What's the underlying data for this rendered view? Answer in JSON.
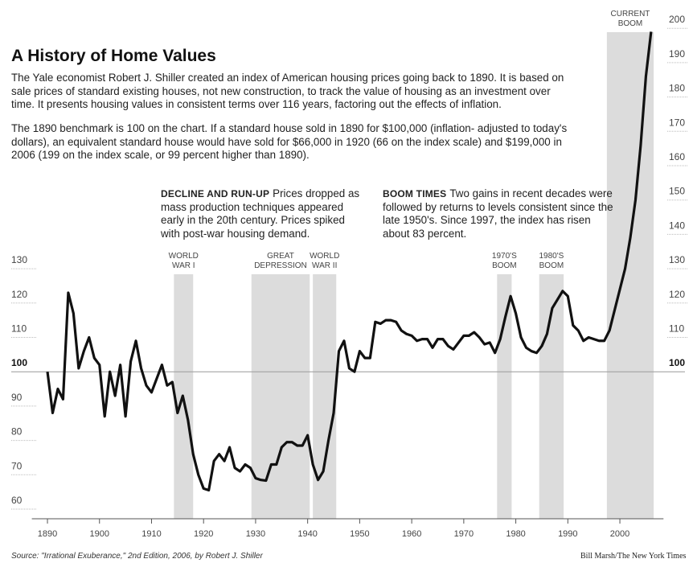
{
  "chart_data": {
    "type": "line",
    "title": "A History of Home Values",
    "subtitle": "The Yale economist Robert J. Shiller created an index of American housing prices going back to 1890. It is based on sale prices of standard existing houses, not new construction, to track the value of housing as an investment over time. It presents housing values in consistent terms over 116 years, factoring out the effects of inflation.",
    "note": "The 1890 benchmark is 100 on the chart. If a standard house sold in 1890 for $100,000 (inflation- adjusted to today's dollars), an equivalent standard house would have sold for $66,000 in 1920 (66 on the index scale) and $199,000 in 2006 (199 on the index scale, or 99 percent higher than 1890).",
    "annotations": [
      {
        "heading": "DECLINE AND RUN-UP",
        "text": "Prices dropped as mass production techniques appeared early in the 20th century. Prices spiked with post-war housing demand."
      },
      {
        "heading": "BOOM TIMES",
        "text": "Two gains in recent decades were followed by returns to levels consistent since the late 1950's. Since 1997, the index has risen about 83 percent."
      }
    ],
    "bands": [
      {
        "label": [
          "WORLD",
          "WAR I"
        ],
        "start": 1914.3,
        "end": 1918
      },
      {
        "label": [
          "GREAT",
          "DEPRESSION"
        ],
        "start": 1929.2,
        "end": 1940.4
      },
      {
        "label": [
          "WORLD",
          "WAR II"
        ],
        "start": 1941,
        "end": 1945.5
      },
      {
        "label": [
          "1970'S",
          "BOOM"
        ],
        "start": 1976.4,
        "end": 1979.2
      },
      {
        "label": [
          "1980'S",
          "BOOM"
        ],
        "start": 1984.5,
        "end": 1989.2
      },
      {
        "label": [
          "CURRENT",
          "BOOM"
        ],
        "start": 1997.5,
        "end": 2006.5
      }
    ],
    "x": [
      1890,
      1891,
      1892,
      1893,
      1894,
      1895,
      1896,
      1897,
      1898,
      1899,
      1900,
      1901,
      1902,
      1903,
      1904,
      1905,
      1906,
      1907,
      1908,
      1909,
      1910,
      1911,
      1912,
      1913,
      1914,
      1915,
      1916,
      1917,
      1918,
      1919,
      1920,
      1921,
      1922,
      1923,
      1924,
      1925,
      1926,
      1927,
      1928,
      1929,
      1930,
      1931,
      1932,
      1933,
      1934,
      1935,
      1936,
      1937,
      1938,
      1939,
      1940,
      1941,
      1942,
      1943,
      1944,
      1945,
      1946,
      1947,
      1948,
      1949,
      1950,
      1951,
      1952,
      1953,
      1954,
      1955,
      1956,
      1957,
      1958,
      1959,
      1960,
      1961,
      1962,
      1963,
      1964,
      1965,
      1966,
      1967,
      1968,
      1969,
      1970,
      1971,
      1972,
      1973,
      1974,
      1975,
      1976,
      1977,
      1978,
      1979,
      1980,
      1981,
      1982,
      1983,
      1984,
      1985,
      1986,
      1987,
      1988,
      1989,
      1990,
      1991,
      1992,
      1993,
      1994,
      1995,
      1996,
      1997,
      1998,
      1999,
      2000,
      2001,
      2002,
      2003,
      2004,
      2005,
      2006
    ],
    "series": [
      {
        "name": "Home value index",
        "color": "#111111",
        "values": [
          100,
          88,
          95,
          92,
          123,
          117,
          101,
          106,
          110,
          104,
          102,
          87,
          100,
          93,
          102,
          87,
          103,
          109,
          101,
          96,
          94,
          98,
          102,
          96,
          97,
          88,
          93,
          86,
          76,
          70,
          66,
          65.5,
          74,
          76,
          74,
          78,
          72,
          71,
          73,
          72,
          69,
          68.5,
          68.3,
          73,
          73,
          78,
          79.5,
          79.5,
          78.5,
          78.5,
          81.5,
          73,
          68.5,
          71,
          80,
          88,
          106,
          109,
          101,
          100,
          106,
          104,
          104,
          114.5,
          114,
          115,
          115,
          114.5,
          112,
          111,
          110.5,
          109,
          109.5,
          109.5,
          107,
          109.5,
          109.5,
          107.5,
          106.5,
          108.5,
          110.5,
          110.5,
          111.5,
          110,
          108,
          108.5,
          105.5,
          109.5,
          116,
          122,
          117,
          110,
          107,
          106,
          105.5,
          107.5,
          111,
          118.5,
          121,
          123.5,
          122,
          113.5,
          112,
          109,
          110,
          109.5,
          109,
          109,
          112,
          118,
          124,
          130,
          139,
          150,
          166,
          186,
          199
        ]
      }
    ],
    "xlim": [
      1887,
      2009
    ],
    "xticks": [
      1890,
      1900,
      1910,
      1920,
      1930,
      1940,
      1950,
      1960,
      1970,
      1980,
      1990,
      2000
    ],
    "ylim": [
      60,
      200
    ],
    "yticks": [
      60,
      70,
      80,
      90,
      100,
      110,
      120,
      130
    ],
    "y2lim": [
      60,
      200
    ],
    "y2ticks": [
      100,
      110,
      120,
      130,
      140,
      150,
      160,
      170,
      180,
      190,
      200
    ],
    "reference_line": 100,
    "band_color": "#dcdcdc",
    "source": "Source: \"Irrational Exuberance,\" 2nd Edition, 2006, by Robert J. Shiller",
    "credit": "Bill Marsh/The New York Times"
  }
}
